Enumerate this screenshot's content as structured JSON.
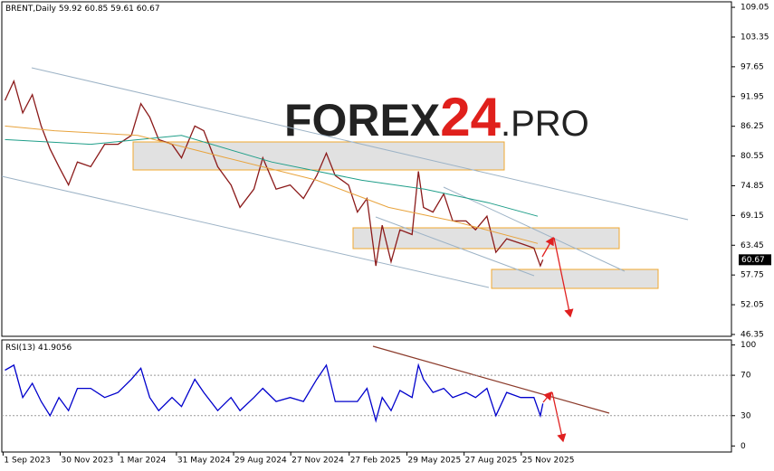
{
  "watermark": {
    "brand": "FOREX",
    "number": "24",
    "suffix": ".PRO"
  },
  "chart_data": [
    {
      "type": "line",
      "title": "BRENT,Daily",
      "ohlc": [
        59.92,
        60.85,
        59.61,
        60.67
      ],
      "xlim": [
        "2023-08-30",
        "2026-10-22"
      ],
      "ylim": [
        46.0,
        110.1
      ],
      "yticks": [
        109.05,
        103.35,
        97.65,
        91.95,
        86.25,
        80.55,
        74.85,
        69.15,
        63.45,
        57.75,
        52.05,
        46.35
      ],
      "series": [
        {
          "color": "#8b1a1a",
          "x": [
            "2023-09-04",
            "2023-09-18",
            "2023-10-02",
            "2023-10-17",
            "2023-10-31",
            "2023-11-14",
            "2023-11-28",
            "2023-12-13",
            "2023-12-27",
            "2024-01-17",
            "2024-02-08",
            "2024-02-29",
            "2024-03-21",
            "2024-04-05",
            "2024-04-19",
            "2024-05-03",
            "2024-05-24",
            "2024-06-08",
            "2024-06-29",
            "2024-07-13",
            "2024-08-04",
            "2024-08-25",
            "2024-09-08",
            "2024-09-30",
            "2024-10-14",
            "2024-11-04",
            "2024-11-26",
            "2024-12-17",
            "2025-01-07",
            "2025-01-22",
            "2025-02-05",
            "2025-02-26",
            "2025-03-12",
            "2025-03-27",
            "2025-04-10",
            "2025-04-20",
            "2025-05-04",
            "2025-05-18",
            "2025-06-06",
            "2025-06-16",
            "2025-06-24",
            "2025-07-09",
            "2025-07-26",
            "2025-08-09",
            "2025-08-30",
            "2025-09-14",
            "2025-10-02",
            "2025-10-16",
            "2025-11-02",
            "2025-11-24",
            "2025-12-15",
            "2025-12-25",
            "2025-12-29"
          ],
          "values": [
            91.2,
            94.9,
            88.8,
            92.3,
            86.3,
            81.9,
            78.5,
            75.0,
            79.4,
            78.5,
            82.8,
            82.8,
            84.5,
            90.6,
            88.0,
            83.7,
            82.8,
            80.2,
            86.3,
            85.4,
            78.5,
            75.0,
            70.7,
            74.2,
            80.2,
            74.2,
            75.0,
            72.4,
            76.8,
            81.1,
            76.8,
            75.0,
            69.8,
            72.4,
            59.5,
            67.3,
            60.3,
            66.4,
            65.5,
            77.6,
            70.7,
            69.8,
            73.3,
            68.1,
            68.1,
            66.4,
            69.0,
            62.1,
            64.7,
            63.8,
            62.9,
            59.5,
            60.67
          ]
        },
        {
          "color": "#1f9e89",
          "x": [
            "2023-09-04",
            "2024-01-17",
            "2024-06-08",
            "2024-10-28",
            "2025-03-19",
            "2025-06-26",
            "2025-10-04",
            "2025-12-21"
          ],
          "values": [
            83.7,
            82.8,
            84.5,
            79.4,
            75.9,
            74.2,
            71.6,
            69.0
          ]
        },
        {
          "color": "#e8a33c",
          "x": [
            "2023-09-04",
            "2023-11-21",
            "2024-03-31",
            "2024-08-18",
            "2025-01-07",
            "2025-04-30",
            "2025-08-09",
            "2025-12-21"
          ],
          "values": [
            86.3,
            85.4,
            84.5,
            80.2,
            75.9,
            70.7,
            68.1,
            63.8
          ]
        }
      ]
    },
    {
      "type": "line",
      "title": "RSI(13)",
      "current": 41.9056,
      "xlim": [
        "2023-08-30",
        "2026-10-22"
      ],
      "ylim": [
        -6,
        105
      ],
      "yticks": [
        100,
        70,
        30,
        0
      ],
      "levels": [
        70,
        30
      ],
      "xticks": [
        {
          "value": "2023-09-01",
          "label": "1 Sep 2023"
        },
        {
          "value": "2023-11-30",
          "label": "30 Nov 2023"
        },
        {
          "value": "2024-03-01",
          "label": "1 Mar 2024"
        },
        {
          "value": "2024-05-31",
          "label": "31 May 2024"
        },
        {
          "value": "2024-08-29",
          "label": "29 Aug 2024"
        },
        {
          "value": "2024-11-27",
          "label": "27 Nov 2024"
        },
        {
          "value": "2025-02-27",
          "label": "27 Feb 2025"
        },
        {
          "value": "2025-05-29",
          "label": "29 May 2025"
        },
        {
          "value": "2025-08-27",
          "label": "27 Aug 2025"
        },
        {
          "value": "2025-11-25",
          "label": "25 Nov 2025"
        }
      ],
      "series": [
        {
          "color": "#0000cc",
          "x": [
            "2023-09-04",
            "2023-09-18",
            "2023-10-02",
            "2023-10-17",
            "2023-10-31",
            "2023-11-14",
            "2023-11-28",
            "2023-12-13",
            "2023-12-27",
            "2024-01-17",
            "2024-02-08",
            "2024-02-29",
            "2024-03-21",
            "2024-04-05",
            "2024-04-19",
            "2024-05-03",
            "2024-05-24",
            "2024-06-08",
            "2024-06-29",
            "2024-07-13",
            "2024-08-04",
            "2024-08-25",
            "2024-09-08",
            "2024-09-30",
            "2024-10-14",
            "2024-11-04",
            "2024-11-26",
            "2024-12-17",
            "2025-01-07",
            "2025-01-22",
            "2025-02-05",
            "2025-02-26",
            "2025-03-12",
            "2025-03-27",
            "2025-04-10",
            "2025-04-20",
            "2025-05-04",
            "2025-05-18",
            "2025-06-06",
            "2025-06-16",
            "2025-06-24",
            "2025-07-09",
            "2025-07-26",
            "2025-08-09",
            "2025-08-30",
            "2025-09-14",
            "2025-10-02",
            "2025-10-16",
            "2025-11-02",
            "2025-11-24",
            "2025-12-15",
            "2025-12-25",
            "2025-12-29"
          ],
          "values": [
            75,
            80,
            48,
            62,
            44,
            30,
            48,
            35,
            57,
            57,
            48,
            53,
            66,
            77,
            48,
            35,
            48,
            39,
            66,
            53,
            35,
            48,
            35,
            48,
            57,
            44,
            48,
            44,
            66,
            80,
            44,
            44,
            44,
            57,
            25,
            48,
            35,
            55,
            48,
            80,
            66,
            53,
            57,
            48,
            53,
            48,
            57,
            30,
            53,
            48,
            48,
            30,
            42
          ]
        }
      ]
    }
  ]
}
